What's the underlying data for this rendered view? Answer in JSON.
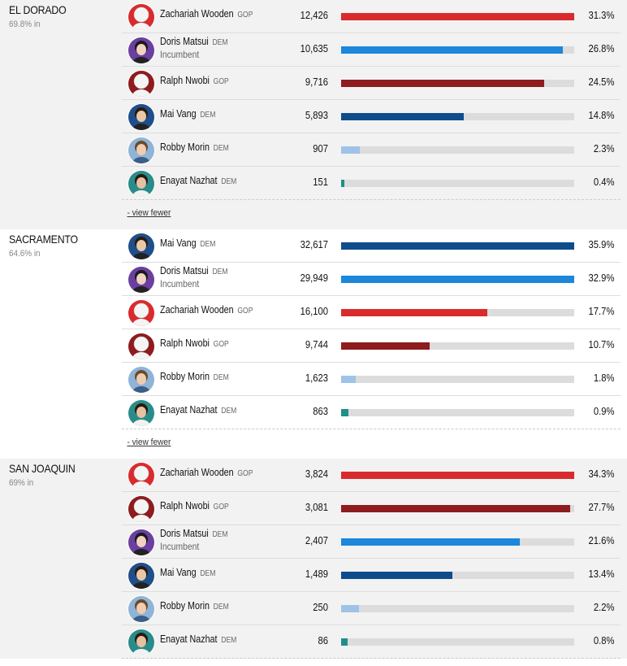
{
  "colors": {
    "gop": "#d92b2e",
    "gop_dark": "#8e1b1e",
    "dem_light": "#1c87db",
    "dem_dark": "#0e4d8c",
    "dem_pale": "#9ec3e6",
    "dem_teal": "#1d8f8a"
  },
  "counties": [
    {
      "name": "EL DORADO",
      "pct_in": "69.8% in",
      "view_label": "- view fewer",
      "rows": [
        {
          "name": "Zachariah Wooden",
          "party": "GOP",
          "votes": "12,426",
          "pct": "31.3%",
          "share": 31.3,
          "color": "#d92b2e",
          "avatar": "red"
        },
        {
          "name": "Doris Matsui",
          "party": "DEM",
          "incumbent": "Incumbent",
          "votes": "10,635",
          "pct": "26.8%",
          "share": 26.8,
          "color": "#1c87db",
          "avatar": "purple"
        },
        {
          "name": "Ralph Nwobi",
          "party": "GOP",
          "votes": "9,716",
          "pct": "24.5%",
          "share": 24.5,
          "color": "#8e1b1e",
          "avatar": "darkred"
        },
        {
          "name": "Mai Vang",
          "party": "DEM",
          "votes": "5,893",
          "pct": "14.8%",
          "share": 14.8,
          "color": "#0e4d8c",
          "avatar": "navy"
        },
        {
          "name": "Robby Morin",
          "party": "DEM",
          "votes": "907",
          "pct": "2.3%",
          "share": 2.3,
          "color": "#9ec3e6",
          "avatar": "pale"
        },
        {
          "name": "Enayat Nazhat",
          "party": "DEM",
          "votes": "151",
          "pct": "0.4%",
          "share": 0.4,
          "color": "#1d8f8a",
          "avatar": "teal"
        }
      ]
    },
    {
      "name": "SACRAMENTO",
      "pct_in": "64.6% in",
      "view_label": "- view fewer",
      "rows": [
        {
          "name": "Mai Vang",
          "party": "DEM",
          "votes": "32,617",
          "pct": "35.9%",
          "share": 35.9,
          "color": "#0e4d8c",
          "avatar": "navy"
        },
        {
          "name": "Doris Matsui",
          "party": "DEM",
          "incumbent": "Incumbent",
          "votes": "29,949",
          "pct": "32.9%",
          "share": 32.9,
          "color": "#1c87db",
          "avatar": "purple"
        },
        {
          "name": "Zachariah Wooden",
          "party": "GOP",
          "votes": "16,100",
          "pct": "17.7%",
          "share": 17.7,
          "color": "#d92b2e",
          "avatar": "red"
        },
        {
          "name": "Ralph Nwobi",
          "party": "GOP",
          "votes": "9,744",
          "pct": "10.7%",
          "share": 10.7,
          "color": "#8e1b1e",
          "avatar": "darkred"
        },
        {
          "name": "Robby Morin",
          "party": "DEM",
          "votes": "1,623",
          "pct": "1.8%",
          "share": 1.8,
          "color": "#9ec3e6",
          "avatar": "pale"
        },
        {
          "name": "Enayat Nazhat",
          "party": "DEM",
          "votes": "863",
          "pct": "0.9%",
          "share": 0.9,
          "color": "#1d8f8a",
          "avatar": "teal"
        }
      ]
    },
    {
      "name": "SAN JOAQUIN",
      "pct_in": "69% in",
      "view_label": "",
      "rows": [
        {
          "name": "Zachariah Wooden",
          "party": "GOP",
          "votes": "3,824",
          "pct": "34.3%",
          "share": 34.3,
          "color": "#d92b2e",
          "avatar": "red"
        },
        {
          "name": "Ralph Nwobi",
          "party": "GOP",
          "votes": "3,081",
          "pct": "27.7%",
          "share": 27.7,
          "color": "#8e1b1e",
          "avatar": "darkred"
        },
        {
          "name": "Doris Matsui",
          "party": "DEM",
          "incumbent": "Incumbent",
          "votes": "2,407",
          "pct": "21.6%",
          "share": 21.6,
          "color": "#1c87db",
          "avatar": "purple"
        },
        {
          "name": "Mai Vang",
          "party": "DEM",
          "votes": "1,489",
          "pct": "13.4%",
          "share": 13.4,
          "color": "#0e4d8c",
          "avatar": "navy"
        },
        {
          "name": "Robby Morin",
          "party": "DEM",
          "votes": "250",
          "pct": "2.2%",
          "share": 2.2,
          "color": "#9ec3e6",
          "avatar": "pale"
        },
        {
          "name": "Enayat Nazhat",
          "party": "DEM",
          "votes": "86",
          "pct": "0.8%",
          "share": 0.8,
          "color": "#1d8f8a",
          "avatar": "teal"
        }
      ]
    }
  ]
}
